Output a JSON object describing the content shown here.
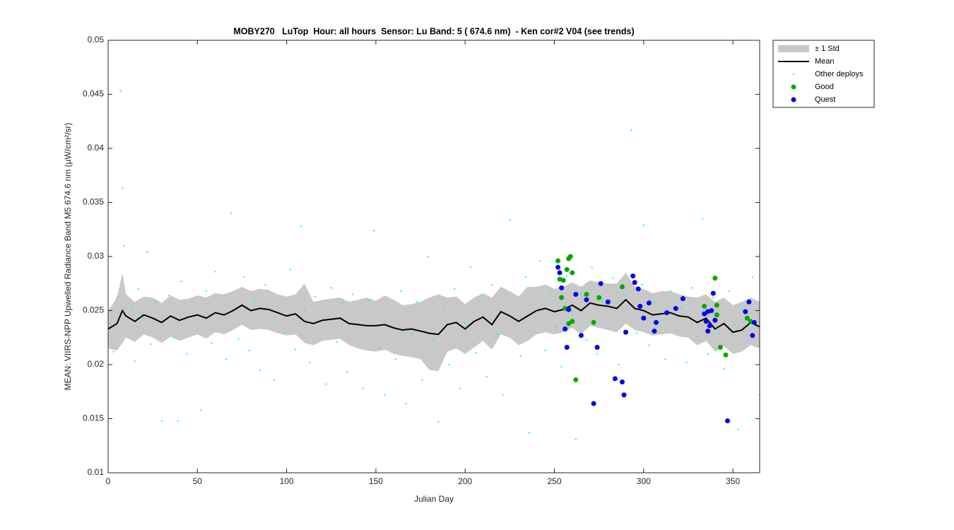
{
  "chart_data": {
    "type": "scatter",
    "title": "MOBY270   LuTop  Hour: all hours  Sensor: Lu Band: 5 ( 674.6 nm)  - Ken cor#2 V04 (see trends)",
    "xlabel": "Julian Day",
    "ylabel": "MEAN: VIIRS-NPP Upwelled Radiance Band M5 674.6 nm (µW/cm²/sr)",
    "xlim": [
      0,
      365
    ],
    "ylim": [
      0.01,
      0.05
    ],
    "xticks": [
      0,
      50,
      100,
      150,
      200,
      250,
      300,
      350
    ],
    "yticks": [
      0.01,
      0.015,
      0.02,
      0.025,
      0.03,
      0.035,
      0.04,
      0.045,
      0.05
    ],
    "legend": "outside-northeast",
    "series": [
      {
        "name": "± 1 Std",
        "kind": "band",
        "color": "#c8c8c8",
        "x": [
          0,
          5,
          8,
          10,
          15,
          20,
          25,
          30,
          35,
          40,
          45,
          50,
          55,
          60,
          65,
          70,
          75,
          80,
          85,
          90,
          95,
          100,
          105,
          110,
          115,
          120,
          125,
          130,
          135,
          140,
          145,
          150,
          155,
          160,
          165,
          170,
          175,
          180,
          185,
          190,
          195,
          200,
          205,
          210,
          215,
          220,
          225,
          230,
          235,
          240,
          245,
          250,
          255,
          260,
          265,
          270,
          275,
          280,
          285,
          290,
          295,
          300,
          305,
          310,
          315,
          320,
          325,
          330,
          335,
          340,
          345,
          350,
          355,
          360,
          365
        ],
        "upper": [
          0.025,
          0.0262,
          0.0285,
          0.0265,
          0.0258,
          0.0263,
          0.0262,
          0.0257,
          0.0264,
          0.026,
          0.0261,
          0.0264,
          0.0262,
          0.0266,
          0.0265,
          0.0268,
          0.0272,
          0.0268,
          0.027,
          0.0269,
          0.0265,
          0.0263,
          0.0265,
          0.0275,
          0.0258,
          0.026,
          0.0261,
          0.0262,
          0.0258,
          0.026,
          0.0262,
          0.0259,
          0.0264,
          0.026,
          0.0255,
          0.0256,
          0.0258,
          0.0262,
          0.0265,
          0.0262,
          0.0263,
          0.0256,
          0.0262,
          0.0266,
          0.0262,
          0.0272,
          0.0268,
          0.0263,
          0.0272,
          0.0272,
          0.0274,
          0.027,
          0.0272,
          0.0276,
          0.0272,
          0.0278,
          0.0276,
          0.0275,
          0.0275,
          0.0285,
          0.0272,
          0.027,
          0.0266,
          0.0268,
          0.0268,
          0.0265,
          0.0263,
          0.0262,
          0.0265,
          0.0258,
          0.0262,
          0.0255,
          0.0258,
          0.0262,
          0.0258
        ],
        "lower": [
          0.0215,
          0.0213,
          0.022,
          0.0225,
          0.0221,
          0.0228,
          0.0225,
          0.022,
          0.0226,
          0.0222,
          0.0225,
          0.0228,
          0.0224,
          0.023,
          0.0228,
          0.0232,
          0.0237,
          0.0232,
          0.0233,
          0.0232,
          0.0229,
          0.0227,
          0.0228,
          0.022,
          0.0218,
          0.0222,
          0.0223,
          0.0224,
          0.0218,
          0.0215,
          0.0213,
          0.0212,
          0.0214,
          0.021,
          0.0208,
          0.0207,
          0.0205,
          0.0195,
          0.0194,
          0.0212,
          0.0215,
          0.021,
          0.0216,
          0.0222,
          0.0214,
          0.0228,
          0.0225,
          0.0218,
          0.0222,
          0.0228,
          0.023,
          0.0228,
          0.023,
          0.0234,
          0.0228,
          0.0236,
          0.0234,
          0.0232,
          0.023,
          0.0238,
          0.0232,
          0.023,
          0.0227,
          0.0228,
          0.0229,
          0.0226,
          0.0225,
          0.0218,
          0.0222,
          0.0212,
          0.0217,
          0.021,
          0.0212,
          0.0218,
          0.0215
        ]
      },
      {
        "name": "Other deploys",
        "kind": "dots",
        "color": "#00ffff",
        "x": [
          1,
          3,
          5,
          7,
          8,
          9,
          11,
          13,
          15,
          17,
          20,
          22,
          24,
          27,
          30,
          31,
          34,
          37,
          39,
          41,
          44,
          47,
          50,
          52,
          55,
          58,
          60,
          63,
          66,
          69,
          71,
          73,
          76,
          79,
          82,
          85,
          88,
          90,
          93,
          96,
          99,
          102,
          105,
          108,
          110,
          113,
          116,
          119,
          122,
          125,
          128,
          131,
          134,
          137,
          140,
          143,
          146,
          149,
          152,
          155,
          158,
          161,
          164,
          167,
          170,
          173,
          176,
          179,
          182,
          185,
          188,
          191,
          194,
          197,
          200,
          203,
          206,
          209,
          212,
          215,
          218,
          221,
          225,
          228,
          231,
          234,
          236,
          239,
          242,
          245,
          248,
          251,
          254,
          257,
          260,
          262,
          265,
          268,
          271,
          274,
          277,
          280,
          283,
          286,
          290,
          293,
          296,
          299,
          300,
          303,
          306,
          309,
          312,
          315,
          318,
          321,
          324,
          327,
          330,
          333,
          336,
          339,
          342,
          345,
          348,
          351,
          353,
          355,
          358,
          361,
          363,
          365
        ],
        "values": [
          0.0238,
          0.0212,
          0.0262,
          0.0453,
          0.0363,
          0.031,
          0.0228,
          0.0251,
          0.0203,
          0.027,
          0.0243,
          0.0304,
          0.0219,
          0.0258,
          0.0148,
          0.0236,
          0.0264,
          0.0225,
          0.0148,
          0.0277,
          0.021,
          0.0253,
          0.0232,
          0.0158,
          0.0268,
          0.022,
          0.0286,
          0.0241,
          0.0205,
          0.034,
          0.0262,
          0.0224,
          0.0281,
          0.0213,
          0.0258,
          0.0195,
          0.0274,
          0.0236,
          0.0186,
          0.0262,
          0.0229,
          0.0288,
          0.0214,
          0.0328,
          0.025,
          0.0202,
          0.0263,
          0.0232,
          0.0182,
          0.0271,
          0.0221,
          0.0257,
          0.0193,
          0.0265,
          0.0238,
          0.0178,
          0.0259,
          0.0324,
          0.0215,
          0.0172,
          0.0248,
          0.0205,
          0.0268,
          0.0164,
          0.0228,
          0.0258,
          0.0186,
          0.03,
          0.0223,
          0.0147,
          0.0252,
          0.02,
          0.027,
          0.0178,
          0.0239,
          0.029,
          0.0211,
          0.0264,
          0.0189,
          0.0274,
          0.0228,
          0.0172,
          0.0334,
          0.0251,
          0.0208,
          0.0281,
          0.0137,
          0.0244,
          0.0296,
          0.0213,
          0.0269,
          0.0235,
          0.0198,
          0.0282,
          0.0246,
          0.0131,
          0.0266,
          0.0223,
          0.029,
          0.021,
          0.0258,
          0.0238,
          0.028,
          0.02,
          0.0264,
          0.0417,
          0.0229,
          0.0274,
          0.0329,
          0.0218,
          0.0258,
          0.024,
          0.0205,
          0.0268,
          0.0231,
          0.0252,
          0.0202,
          0.0271,
          0.0226,
          0.0335,
          0.021,
          0.0262,
          0.0229,
          0.0196,
          0.0268,
          0.0237,
          0.014,
          0.0252,
          0.022,
          0.0281,
          0.0235,
          0.0172
        ]
      },
      {
        "name": "Mean",
        "kind": "line",
        "color": "#000000",
        "x": [
          0,
          5,
          8,
          10,
          15,
          20,
          25,
          30,
          35,
          40,
          45,
          50,
          55,
          60,
          65,
          70,
          75,
          80,
          85,
          90,
          95,
          100,
          105,
          110,
          115,
          120,
          125,
          130,
          135,
          140,
          145,
          150,
          155,
          160,
          165,
          170,
          175,
          180,
          185,
          190,
          195,
          200,
          205,
          210,
          215,
          220,
          225,
          230,
          235,
          240,
          245,
          250,
          255,
          260,
          265,
          270,
          275,
          280,
          285,
          290,
          295,
          300,
          305,
          310,
          315,
          320,
          325,
          330,
          335,
          340,
          345,
          350,
          355,
          360,
          365
        ],
        "values": [
          0.0233,
          0.0238,
          0.025,
          0.0245,
          0.024,
          0.0246,
          0.0243,
          0.0239,
          0.0245,
          0.0241,
          0.0244,
          0.0246,
          0.0243,
          0.0248,
          0.0246,
          0.025,
          0.0255,
          0.025,
          0.0252,
          0.0251,
          0.0248,
          0.0245,
          0.0247,
          0.024,
          0.0238,
          0.0241,
          0.0242,
          0.0243,
          0.0238,
          0.0237,
          0.0236,
          0.0236,
          0.0237,
          0.0234,
          0.0232,
          0.0233,
          0.0231,
          0.0229,
          0.0228,
          0.0237,
          0.0239,
          0.0233,
          0.024,
          0.0244,
          0.0237,
          0.0249,
          0.0245,
          0.024,
          0.0245,
          0.025,
          0.0252,
          0.0249,
          0.0251,
          0.0255,
          0.025,
          0.0257,
          0.0255,
          0.0254,
          0.0252,
          0.026,
          0.0252,
          0.025,
          0.0246,
          0.0247,
          0.0248,
          0.0245,
          0.0244,
          0.0239,
          0.0243,
          0.0233,
          0.0238,
          0.023,
          0.0232,
          0.0239,
          0.0235
        ]
      },
      {
        "name": "Good",
        "kind": "points",
        "color": "#00aa00",
        "x": [
          252,
          253,
          255,
          257,
          258,
          259,
          260,
          258,
          260,
          262,
          268,
          272,
          275,
          288,
          334,
          340,
          341,
          341,
          343,
          346,
          358,
          360,
          254,
          256
        ],
        "values": [
          0.0296,
          0.0279,
          0.0278,
          0.0288,
          0.0298,
          0.03,
          0.0285,
          0.0238,
          0.024,
          0.0186,
          0.0265,
          0.0239,
          0.0262,
          0.0272,
          0.0254,
          0.028,
          0.0255,
          0.0246,
          0.0216,
          0.0209,
          0.0243,
          0.024,
          0.0262,
          0.0252
        ]
      },
      {
        "name": "Quest",
        "kind": "points",
        "color": "#0000ee",
        "x": [
          252,
          253,
          254,
          256,
          257,
          258,
          262,
          265,
          268,
          272,
          274,
          276,
          280,
          284,
          288,
          289,
          290,
          294,
          295,
          297,
          298,
          300,
          303,
          306,
          307,
          313,
          318,
          322,
          334,
          335,
          336,
          336,
          337,
          338,
          339,
          340,
          347,
          357,
          359,
          361,
          362
        ],
        "values": [
          0.029,
          0.0285,
          0.0271,
          0.0233,
          0.0216,
          0.0251,
          0.0265,
          0.0227,
          0.026,
          0.0164,
          0.0216,
          0.0275,
          0.0258,
          0.0187,
          0.0184,
          0.0172,
          0.023,
          0.0282,
          0.0276,
          0.027,
          0.0254,
          0.0243,
          0.0257,
          0.0231,
          0.0239,
          0.0248,
          0.0252,
          0.0261,
          0.0247,
          0.024,
          0.0231,
          0.0249,
          0.0236,
          0.025,
          0.0266,
          0.0241,
          0.0148,
          0.0249,
          0.0258,
          0.0227,
          0.0239
        ]
      }
    ]
  }
}
